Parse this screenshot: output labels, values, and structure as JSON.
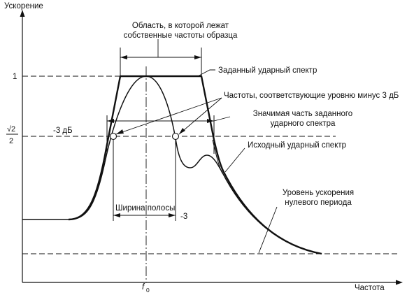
{
  "axes": {
    "y_label": "Ускорение",
    "x_label": "Частота",
    "y_tick_1": "1",
    "y_tick_sqrt2_num": "√2",
    "y_tick_sqrt2_den": "2",
    "y_tick_minus3db": "-3 дБ",
    "x_tick_f0_main": "f",
    "x_tick_f0_sub": "0"
  },
  "annotations": {
    "region_line1": "Область, в которой лежат",
    "region_line2": "собственные частоты образца",
    "specified_spectrum": "Заданный ударный спектр",
    "minus3db_frequencies": "Частоты, соответствующие уровню минус 3 дБ",
    "significant_part_line1": "Значимая часть заданного",
    "significant_part_line2": "ударного спектра",
    "initial_spectrum": "Исходный ударный спектр",
    "zero_period_line1": "Уровень ускорения",
    "zero_period_line2": "нулевого периода",
    "bandwidth": "Ширина полосы",
    "bandwidth_suffix": "-3"
  }
}
